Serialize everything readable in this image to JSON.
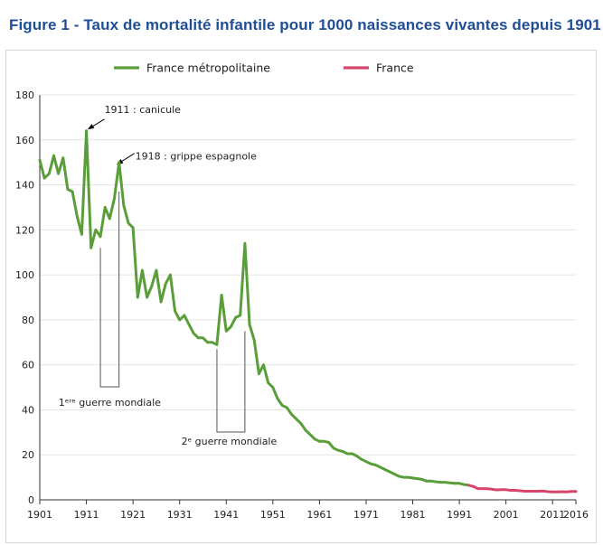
{
  "figure": {
    "title": "Figure 1 - Taux de mortalité infantile pour 1000 naissances vivantes depuis 1901"
  },
  "chart_data": {
    "type": "line",
    "title": "Figure 1 - Taux de mortalité infantile pour 1000 naissances vivantes depuis 1901",
    "xlabel": "",
    "ylabel": "",
    "xlim": [
      1901,
      2016
    ],
    "ylim": [
      0,
      180
    ],
    "grid": "horizontal",
    "legend_position": "top",
    "x_ticks": [
      1901,
      1911,
      1921,
      1931,
      1941,
      1951,
      1961,
      1971,
      1981,
      1991,
      2001,
      2011,
      2016
    ],
    "y_ticks": [
      0,
      20,
      40,
      60,
      80,
      100,
      120,
      140,
      160,
      180
    ],
    "series": [
      {
        "name": "France métropolitaine",
        "color": "#5a9e3a",
        "points": [
          [
            1901,
            151
          ],
          [
            1902,
            143
          ],
          [
            1903,
            145
          ],
          [
            1904,
            153
          ],
          [
            1905,
            145
          ],
          [
            1906,
            152
          ],
          [
            1907,
            138
          ],
          [
            1908,
            137
          ],
          [
            1909,
            126
          ],
          [
            1910,
            118
          ],
          [
            1911,
            164
          ],
          [
            1912,
            112
          ],
          [
            1913,
            120
          ],
          [
            1914,
            117
          ],
          [
            1915,
            130
          ],
          [
            1916,
            125
          ],
          [
            1917,
            134
          ],
          [
            1918,
            150
          ],
          [
            1919,
            131
          ],
          [
            1920,
            123
          ],
          [
            1921,
            121
          ],
          [
            1922,
            90
          ],
          [
            1923,
            102
          ],
          [
            1924,
            90
          ],
          [
            1925,
            95
          ],
          [
            1926,
            102
          ],
          [
            1927,
            88
          ],
          [
            1928,
            96
          ],
          [
            1929,
            100
          ],
          [
            1930,
            84
          ],
          [
            1931,
            80
          ],
          [
            1932,
            82
          ],
          [
            1933,
            78
          ],
          [
            1934,
            74
          ],
          [
            1935,
            72
          ],
          [
            1936,
            72
          ],
          [
            1937,
            70
          ],
          [
            1938,
            70
          ],
          [
            1939,
            69
          ],
          [
            1940,
            91
          ],
          [
            1941,
            75
          ],
          [
            1942,
            77
          ],
          [
            1943,
            81
          ],
          [
            1944,
            82
          ],
          [
            1945,
            114
          ],
          [
            1946,
            78
          ],
          [
            1947,
            71
          ],
          [
            1948,
            56
          ],
          [
            1949,
            60
          ],
          [
            1950,
            52
          ],
          [
            1951,
            50
          ],
          [
            1952,
            45
          ],
          [
            1953,
            42
          ],
          [
            1954,
            41
          ],
          [
            1955,
            38
          ],
          [
            1956,
            36
          ],
          [
            1957,
            34
          ],
          [
            1958,
            31
          ],
          [
            1959,
            29
          ],
          [
            1960,
            27
          ],
          [
            1961,
            26
          ],
          [
            1962,
            26
          ],
          [
            1963,
            25.5
          ],
          [
            1964,
            23
          ],
          [
            1965,
            22
          ],
          [
            1966,
            21.5
          ],
          [
            1967,
            20.5
          ],
          [
            1968,
            20.5
          ],
          [
            1969,
            19.5
          ],
          [
            1970,
            18
          ],
          [
            1971,
            17
          ],
          [
            1972,
            16
          ],
          [
            1973,
            15.5
          ],
          [
            1974,
            14.5
          ],
          [
            1975,
            13.5
          ],
          [
            1976,
            12.5
          ],
          [
            1977,
            11.5
          ],
          [
            1978,
            10.5
          ],
          [
            1979,
            10
          ],
          [
            1980,
            10
          ],
          [
            1981,
            9.7
          ],
          [
            1982,
            9.4
          ],
          [
            1983,
            9.1
          ],
          [
            1984,
            8.3
          ],
          [
            1985,
            8.3
          ],
          [
            1986,
            8
          ],
          [
            1987,
            7.8
          ],
          [
            1988,
            7.8
          ],
          [
            1989,
            7.5
          ],
          [
            1990,
            7.3
          ],
          [
            1991,
            7.3
          ],
          [
            1992,
            6.8
          ],
          [
            1993,
            6.5
          ]
        ]
      },
      {
        "name": "France",
        "color": "#d6456b",
        "points": [
          [
            1993,
            6.5
          ],
          [
            1994,
            5.9
          ],
          [
            1995,
            5
          ],
          [
            1996,
            5
          ],
          [
            1997,
            4.9
          ],
          [
            1998,
            4.7
          ],
          [
            1999,
            4.4
          ],
          [
            2000,
            4.5
          ],
          [
            2001,
            4.5
          ],
          [
            2002,
            4.2
          ],
          [
            2003,
            4.2
          ],
          [
            2004,
            4
          ],
          [
            2005,
            3.8
          ],
          [
            2006,
            3.8
          ],
          [
            2007,
            3.8
          ],
          [
            2008,
            3.8
          ],
          [
            2009,
            3.9
          ],
          [
            2010,
            3.6
          ],
          [
            2011,
            3.5
          ],
          [
            2012,
            3.5
          ],
          [
            2013,
            3.6
          ],
          [
            2014,
            3.5
          ],
          [
            2015,
            3.7
          ],
          [
            2016,
            3.7
          ]
        ]
      }
    ],
    "annotations": {
      "canicule": {
        "text": "1911 : canicule",
        "x": 1911,
        "y": 164
      },
      "grippe": {
        "text": "1918 : grippe espagnole",
        "x": 1918,
        "y": 150
      },
      "ww1": {
        "text": "1ᵉʳᵉ guerre mondiale",
        "x_start": 1914,
        "x_end": 1918
      },
      "ww2": {
        "text": "2ᵉ guerre mondiale",
        "x_start": 1939,
        "x_end": 1945
      }
    }
  }
}
